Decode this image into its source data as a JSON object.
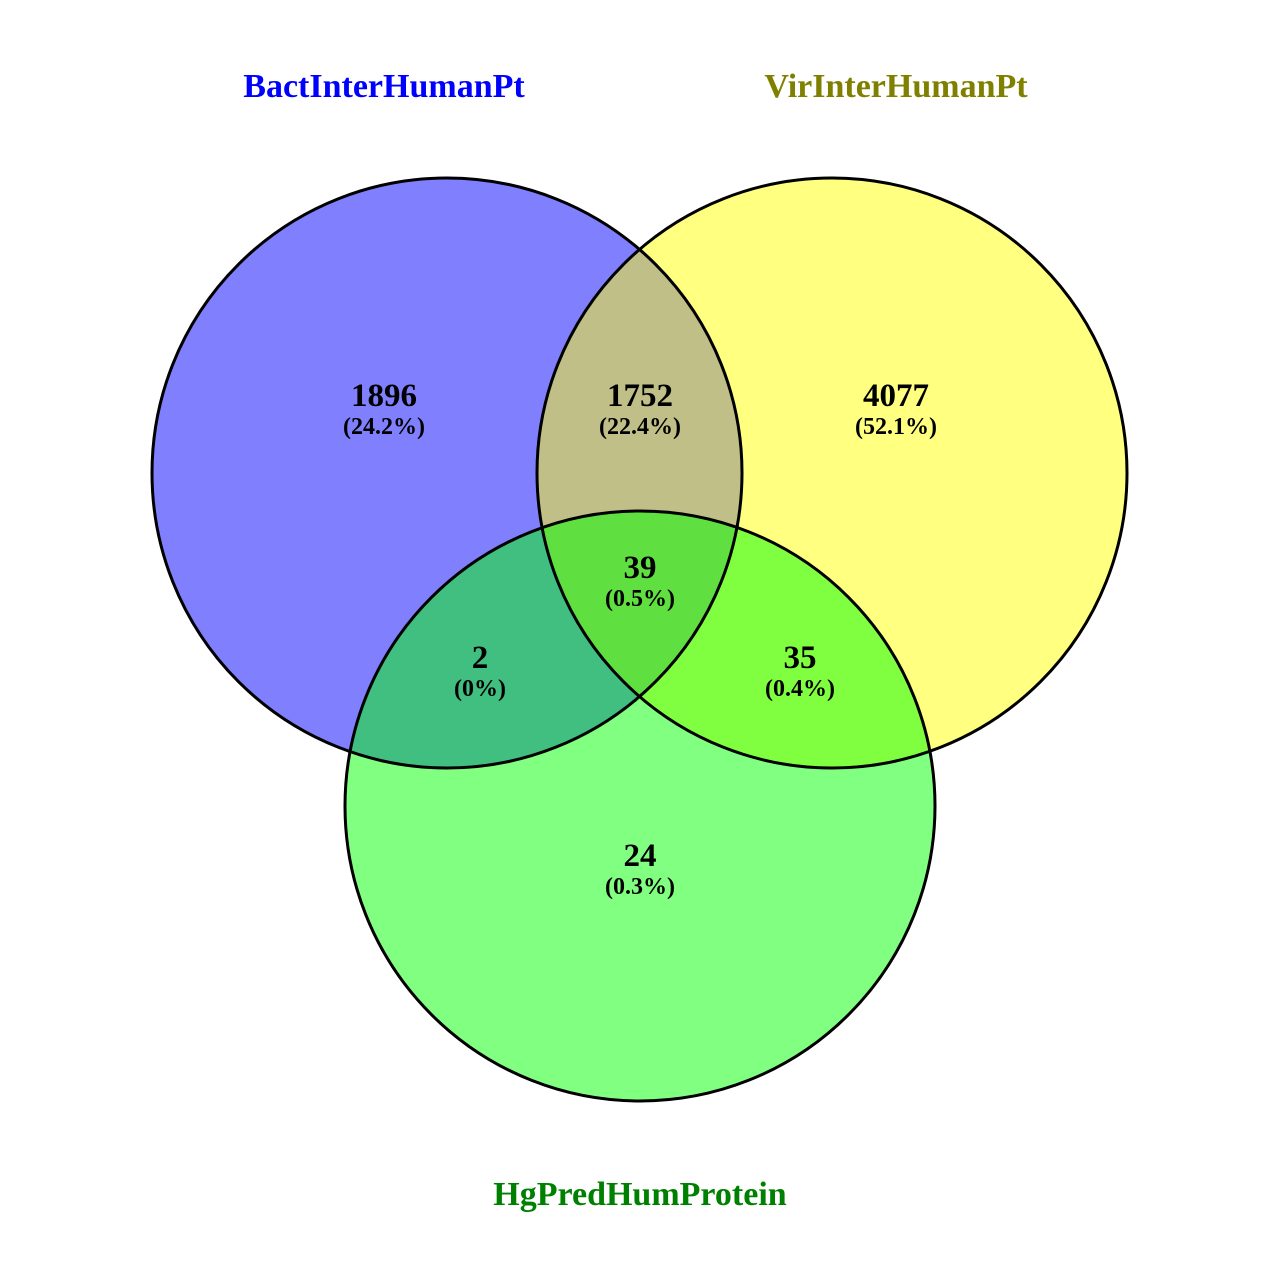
{
  "sets": [
    {
      "name": "BactInterHumanPt",
      "fill": "#8080ff",
      "label_color": "#0000ff"
    },
    {
      "name": "VirInterHumanPt",
      "fill": "#ffff80",
      "label_color": "#808000"
    },
    {
      "name": "HgPredHumProtein",
      "fill": "#80ff80",
      "label_color": "#008000"
    }
  ],
  "region_colors": {
    "bact_vir": "#bfbf87",
    "bact_hg": "#40bf80",
    "vir_hg": "#80ff40",
    "all": "#5fdf40"
  },
  "regions": {
    "bact_only": {
      "count": "1896",
      "percent": "(24.2%)"
    },
    "bact_vir": {
      "count": "1752",
      "percent": "(22.4%)"
    },
    "vir_only": {
      "count": "4077",
      "percent": "(52.1%)"
    },
    "all": {
      "count": "39",
      "percent": "(0.5%)"
    },
    "bact_hg": {
      "count": "2",
      "percent": "(0%)"
    },
    "vir_hg": {
      "count": "35",
      "percent": "(0.4%)"
    },
    "hg_only": {
      "count": "24",
      "percent": "(0.3%)"
    }
  }
}
